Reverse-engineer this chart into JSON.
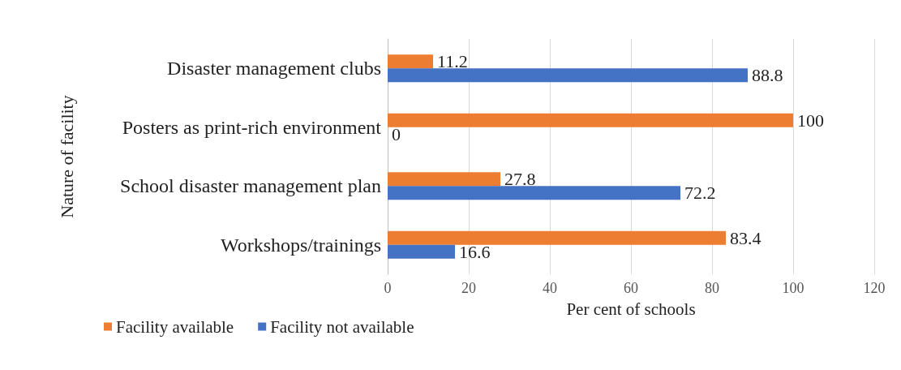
{
  "chart_data": {
    "type": "bar",
    "orientation": "horizontal",
    "xlabel": "Per cent of schools",
    "ylabel": "Nature of facility",
    "categories": [
      "Disaster management clubs",
      "Posters as print-rich environment",
      "School disaster management plan",
      "Workshops/trainings"
    ],
    "series": [
      {
        "name": "Facility available",
        "color": "#ed7d31",
        "values": [
          11.2,
          100,
          27.8,
          83.4
        ]
      },
      {
        "name": "Facility not available",
        "color": "#4472c4",
        "values": [
          88.8,
          0,
          72.2,
          16.6
        ]
      }
    ],
    "xlim": [
      0,
      120
    ],
    "xticks": [
      0,
      20,
      40,
      60,
      80,
      100,
      120
    ],
    "grid": "x",
    "legend": "bottom left",
    "data_labels": true
  }
}
